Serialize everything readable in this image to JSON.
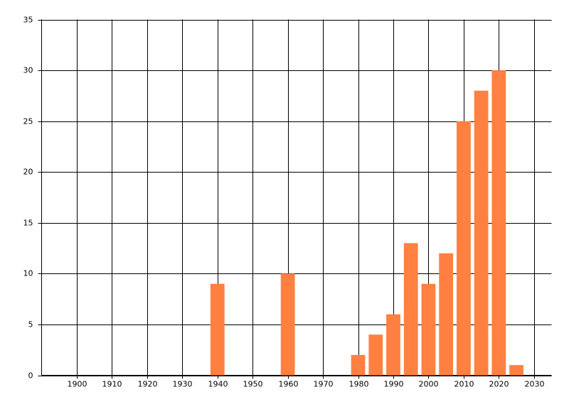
{
  "chart_data": {
    "type": "bar",
    "x": [
      1940,
      1960,
      1980,
      1985,
      1990,
      1995,
      2000,
      2005,
      2010,
      2015,
      2020,
      2025
    ],
    "values": [
      9,
      10,
      2,
      4,
      6,
      13,
      9,
      12,
      25,
      28,
      30,
      1
    ],
    "color": "#ff8040",
    "xlim": [
      1890,
      2035
    ],
    "xticks": [
      1900,
      1910,
      1920,
      1930,
      1940,
      1950,
      1960,
      1970,
      1980,
      1990,
      2000,
      2010,
      2020,
      2030
    ],
    "ylim": [
      0,
      35
    ],
    "yticks": [
      0,
      5,
      10,
      15,
      20,
      25,
      30,
      35
    ],
    "grid": true
  }
}
